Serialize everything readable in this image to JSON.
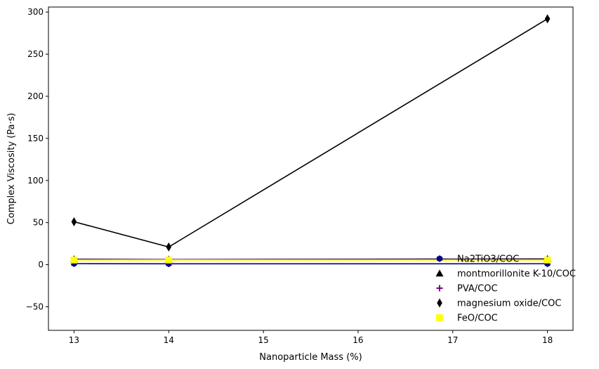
{
  "chart_data": {
    "type": "line",
    "title": "",
    "xlabel": "Nanoparticle Mass (%)",
    "ylabel": "Complex Viscosity (Pa·s)",
    "xlim": [
      12.73,
      18.27
    ],
    "ylim": [
      -78,
      306
    ],
    "xticks": [
      13,
      14,
      15,
      16,
      17,
      18
    ],
    "yticks": [
      -50,
      0,
      50,
      100,
      150,
      200,
      250,
      300
    ],
    "grid": false,
    "legend_position": "lower-right",
    "x": [
      13,
      14,
      18
    ],
    "series": [
      {
        "name": "Na2TiO3/COC",
        "values": [
          1.2,
          1.0,
          1.1
        ],
        "color": "#000080",
        "marker": "hexagon"
      },
      {
        "name": "montmorillonite K-10/COC",
        "values": [
          6.5,
          6.2,
          6.8
        ],
        "color": "#000000",
        "marker": "triangle"
      },
      {
        "name": "PVA/COC",
        "values": [
          6.0,
          6.0,
          6.0
        ],
        "color": "#800080",
        "marker": "plus"
      },
      {
        "name": "magnesium oxide/COC",
        "values": [
          51,
          21,
          292
        ],
        "color": "#000000",
        "marker": "thin-diamond"
      },
      {
        "name": "FeO/COC",
        "values": [
          5.5,
          5.5,
          5.5
        ],
        "color": "#ffff00",
        "marker": "square"
      }
    ]
  }
}
